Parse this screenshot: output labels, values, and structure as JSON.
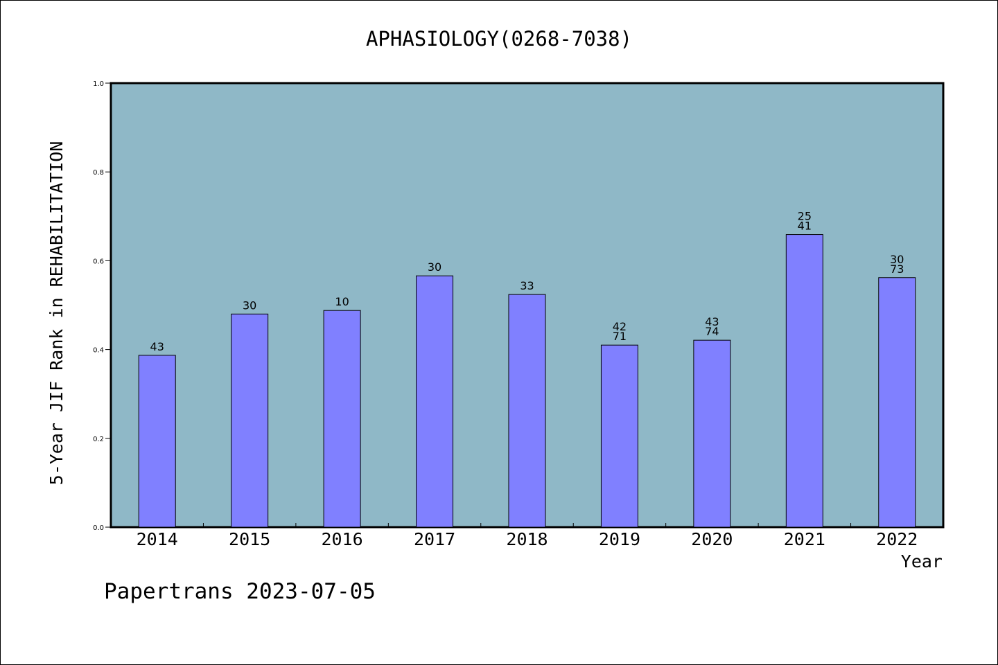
{
  "chart_data": {
    "type": "bar",
    "title": "APHASIOLOGY(0268-7038)",
    "xlabel": "Year",
    "ylabel": "5-Year JIF Rank in REHABILITATION",
    "ylim": [
      0,
      1.0
    ],
    "yticks": [
      "0.0",
      "0.2",
      "0.4",
      "0.6",
      "0.8",
      "1.0"
    ],
    "categories": [
      "2014",
      "2015",
      "2016",
      "2017",
      "2018",
      "2019",
      "2020",
      "2021",
      "2022"
    ],
    "values": [
      0.387,
      0.48,
      0.488,
      0.566,
      0.524,
      0.41,
      0.421,
      0.659,
      0.562
    ],
    "labels": [
      [
        "43"
      ],
      [
        "30"
      ],
      [
        "10"
      ],
      [
        "30"
      ],
      [
        "33"
      ],
      [
        "42",
        "71"
      ],
      [
        "43",
        "74"
      ],
      [
        "25",
        "41"
      ],
      [
        "30",
        "73"
      ]
    ],
    "colors": {
      "plot_bg": "#8fb8c7",
      "bar": "#8080ff",
      "bar_stroke": "#000000"
    },
    "grid": false,
    "legend": "none"
  },
  "footer": {
    "text": "Papertrans 2023-07-05"
  }
}
